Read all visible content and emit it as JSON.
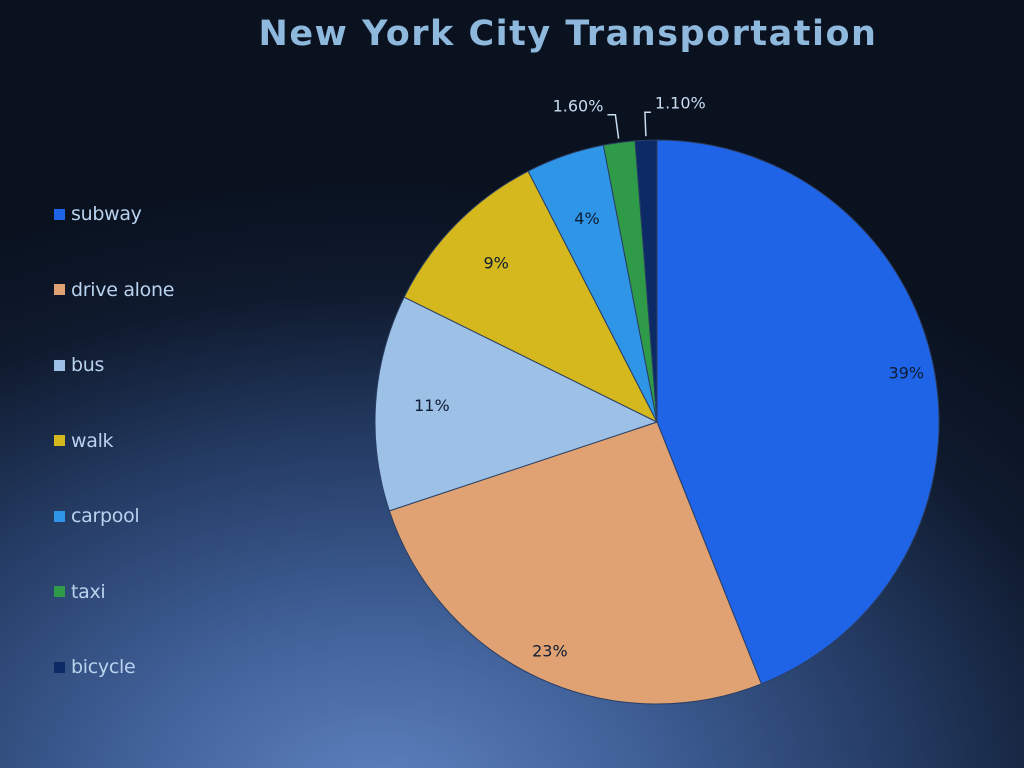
{
  "chart_data": {
    "type": "pie",
    "title": "New York City Transportation",
    "categories": [
      "subway",
      "drive alone",
      "bus",
      "walk",
      "carpool",
      "taxi",
      "bicycle"
    ],
    "values": [
      39,
      23,
      11,
      9,
      4,
      1.6,
      1.1
    ],
    "data_labels": [
      "39%",
      "23%",
      "11%",
      "9%",
      "4%",
      "1.60%",
      "1.10%"
    ],
    "colors": [
      "#1f63e6",
      "#e0a272",
      "#9cc0e6",
      "#d4b81e",
      "#2f95e6",
      "#2f9a48",
      "#0c2a66"
    ],
    "legend_position": "left",
    "start_angle": "top, clockwise"
  }
}
